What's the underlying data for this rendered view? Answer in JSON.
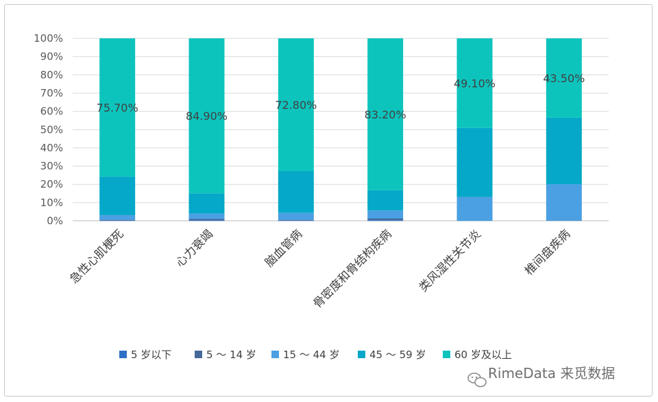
{
  "chart_data": {
    "type": "bar",
    "stacked": "percent",
    "categories": [
      "急性心肌梗死",
      "心力衰竭",
      "脑血管病",
      "骨密度和骨结构疾病",
      "类风湿性关节炎",
      "椎间盘疾病"
    ],
    "series": [
      {
        "name": "5 岁以下",
        "color": "#2e6fc7",
        "values": [
          0.2,
          0.5,
          0.2,
          0.5,
          0.0,
          0.0
        ]
      },
      {
        "name": "5 ～ 14 岁",
        "color": "#44699a",
        "values": [
          0.3,
          0.6,
          0.3,
          0.8,
          0.0,
          0.1
        ]
      },
      {
        "name": "15 ～ 44 岁",
        "color": "#4aa0e3",
        "values": [
          2.7,
          2.9,
          3.9,
          4.4,
          13.1,
          20.0
        ]
      },
      {
        "name": "45 ～ 59 岁",
        "color": "#05a8c8",
        "values": [
          21.1,
          11.1,
          22.8,
          11.1,
          37.8,
          36.4
        ]
      },
      {
        "name": "60 岁及以上",
        "color": "#0dc4bd",
        "values": [
          75.7,
          84.9,
          72.8,
          83.2,
          49.1,
          43.5
        ]
      }
    ],
    "data_labels": [
      "75.70%",
      "84.90%",
      "72.80%",
      "83.20%",
      "49.10%",
      "43.50%"
    ],
    "y_ticks": [
      "0%",
      "10%",
      "20%",
      "30%",
      "40%",
      "50%",
      "60%",
      "70%",
      "80%",
      "90%",
      "100%"
    ],
    "ylim": [
      0,
      100
    ],
    "grid": true,
    "legend_position": "bottom"
  },
  "watermark": "RimeData 来觅数据",
  "icons": {
    "watermark": "wechat-icon"
  }
}
